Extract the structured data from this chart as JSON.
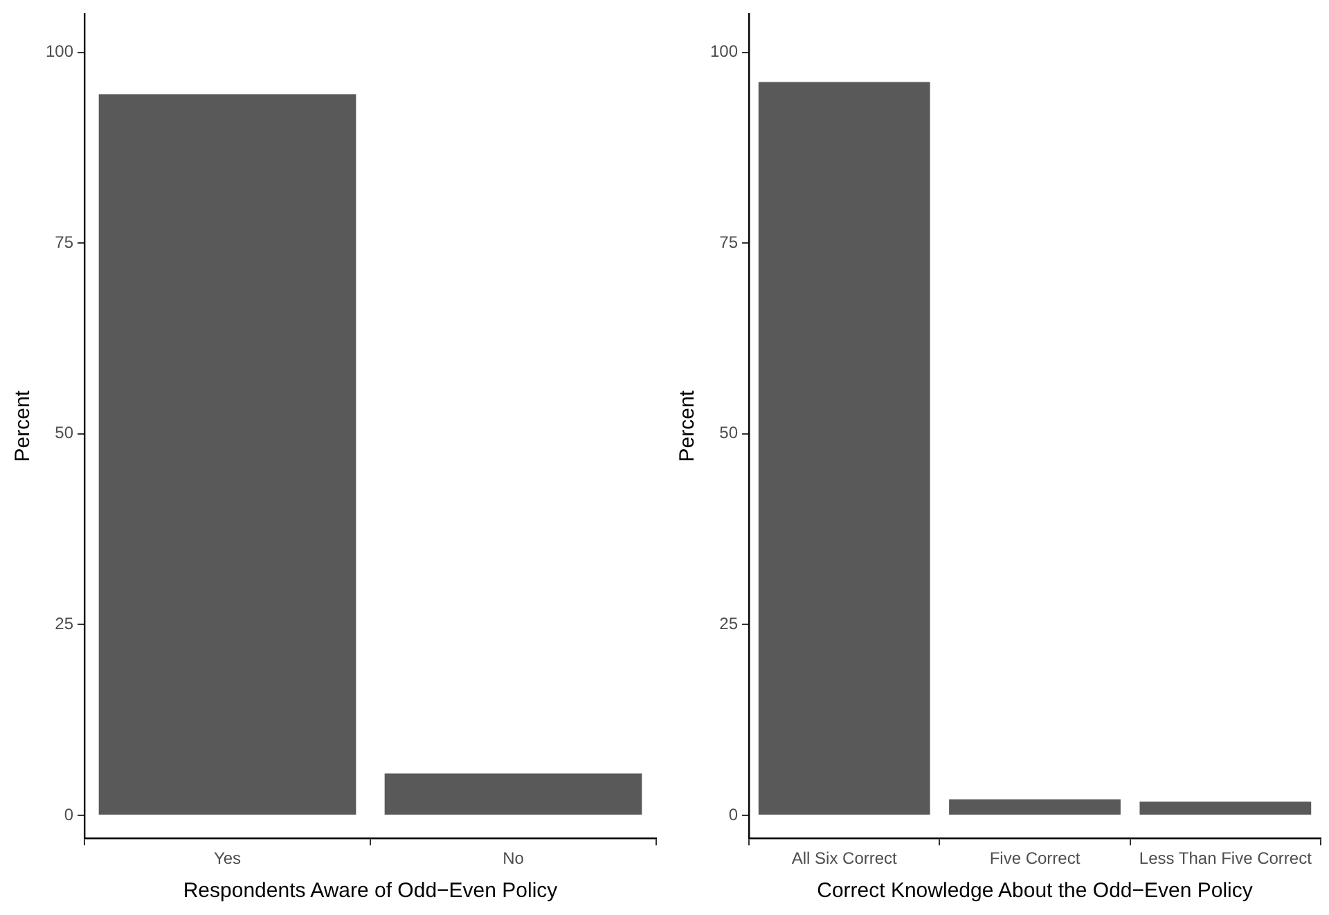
{
  "chart_data": [
    {
      "type": "bar",
      "xlabel": "Respondents Aware of Odd−Even Policy",
      "ylabel": "Percent",
      "categories": [
        "Yes",
        "No"
      ],
      "values": [
        94.5,
        5.5
      ],
      "color": "#595959",
      "ylim": [
        -3,
        105
      ],
      "yticks": [
        0,
        25,
        50,
        75,
        100
      ],
      "grid": false,
      "legend": false
    },
    {
      "type": "bar",
      "xlabel": "Correct Knowledge About the Odd−Even Policy",
      "ylabel": "Percent",
      "categories": [
        "All Six Correct",
        "Five Correct",
        "Less Than Five Correct"
      ],
      "values": [
        96.1,
        2.1,
        1.8
      ],
      "color": "#595959",
      "ylim": [
        -3,
        105
      ],
      "yticks": [
        0,
        25,
        50,
        75,
        100
      ],
      "grid": false,
      "legend": false
    }
  ]
}
